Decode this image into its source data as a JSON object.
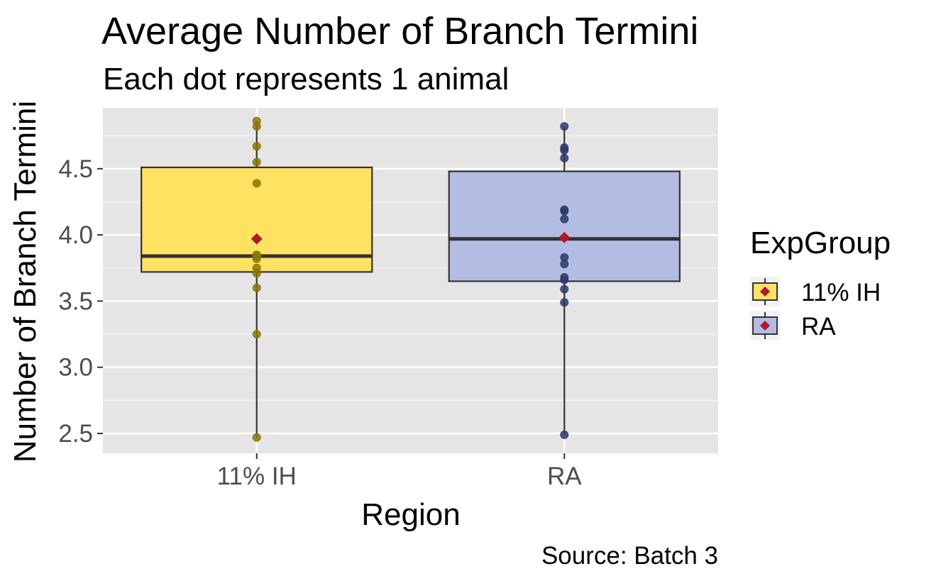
{
  "chart_data": {
    "type": "box",
    "title": "Average Number of Branch Termini",
    "subtitle": "Each dot represents 1 animal",
    "xlabel": "Region",
    "ylabel": "Number of Branch Termini",
    "caption": "Source: Batch 3",
    "ylim": [
      2.35,
      4.96
    ],
    "yticks": [
      2.5,
      3.0,
      3.5,
      4.0,
      4.5
    ],
    "ytick_labels": [
      "2.5",
      "3.0",
      "3.5",
      "4.0",
      "4.5"
    ],
    "categories": [
      "11% IH",
      "RA"
    ],
    "legend": {
      "title": "ExpGroup",
      "position": "right",
      "entries": [
        "11% IH",
        "RA"
      ]
    },
    "grid": true,
    "series": [
      {
        "name": "11% IH",
        "fill": "#FFE262",
        "point_color": "#8B7500",
        "box": {
          "min": 2.47,
          "q1": 3.72,
          "median": 3.84,
          "q3": 4.51,
          "max": 4.86
        },
        "mean": 3.97,
        "points": [
          4.86,
          4.82,
          4.67,
          4.55,
          4.39,
          3.85,
          3.84,
          3.82,
          3.75,
          3.71,
          3.6,
          3.25,
          2.47
        ]
      },
      {
        "name": "RA",
        "fill": "#B3BDE3",
        "point_color": "#2E3A6B",
        "box": {
          "min": 2.49,
          "q1": 3.65,
          "median": 3.97,
          "q3": 4.48,
          "max": 4.82
        },
        "mean": 3.98,
        "points": [
          4.82,
          4.66,
          4.64,
          4.58,
          4.19,
          4.18,
          4.12,
          3.83,
          3.78,
          3.68,
          3.66,
          3.59,
          3.49,
          2.49
        ]
      }
    ],
    "mean_marker_color": "#B2182B"
  }
}
